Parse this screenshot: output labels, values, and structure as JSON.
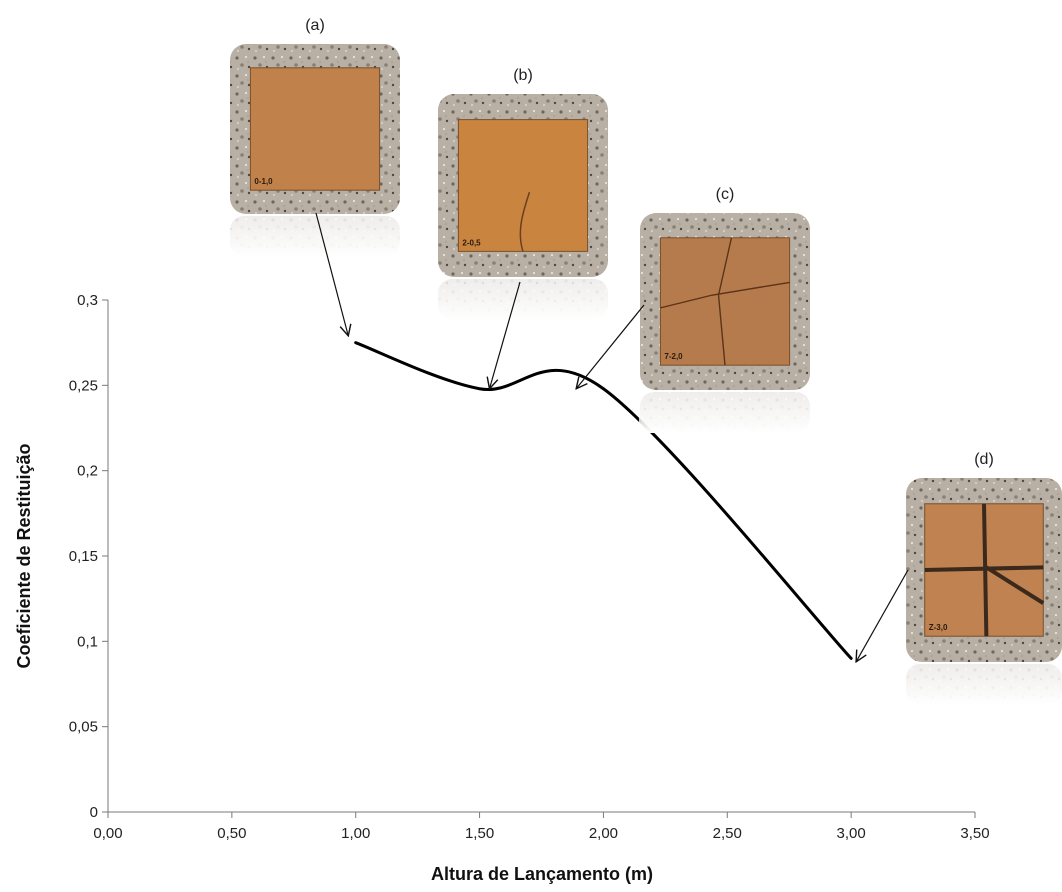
{
  "chart_data": {
    "type": "line",
    "title": "",
    "xlabel": "Altura de Lançamento (m)",
    "ylabel": "Coeficiente de Restituição",
    "xlim": [
      0,
      3.5
    ],
    "ylim": [
      0,
      0.3
    ],
    "x_ticks": [
      "0,00",
      "0,50",
      "1,00",
      "1,50",
      "2,00",
      "2,50",
      "3,00",
      "3,50"
    ],
    "y_ticks": [
      "0",
      "0,05",
      "0,1",
      "0,15",
      "0,2",
      "0,25",
      "0,3"
    ],
    "grid": false,
    "legend": "none",
    "line_color": "#000000",
    "series": [
      {
        "x": [
          1.0,
          1.5,
          2.0,
          3.0
        ],
        "y": [
          0.275,
          0.248,
          0.248,
          0.09
        ]
      }
    ],
    "annotations": [
      {
        "label": "(a)",
        "code": "0-1,0",
        "points_to": [
          0.97,
          0.279
        ],
        "fill": "#c0824a",
        "style": "intact"
      },
      {
        "label": "(b)",
        "code": "2-0,5",
        "points_to": [
          1.54,
          0.248
        ],
        "fill": "#c9853f",
        "style": "crack"
      },
      {
        "label": "(c)",
        "code": "7-2,0",
        "points_to": [
          1.89,
          0.248
        ],
        "fill": "#b67b4c",
        "style": "cracked"
      },
      {
        "label": "(d)",
        "code": "Z-3,0",
        "points_to": [
          3.02,
          0.088
        ],
        "fill": "#bf8250",
        "style": "broken"
      }
    ]
  }
}
